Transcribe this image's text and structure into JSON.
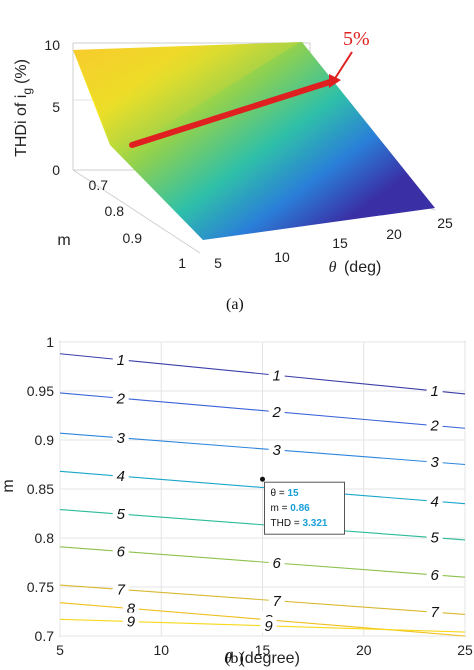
{
  "captions": [
    "(a)",
    "(b)"
  ],
  "chart_data": [
    {
      "type": "surface",
      "panel": "(a)",
      "zlabel": "THDi of i_g (%)",
      "zlabel_main": "THDi of i",
      "zlabel_sub": "g",
      "zlabel_unit": "(%)",
      "xlabel": "θ (deg)",
      "ylabel": "m",
      "xlim": [
        5,
        25
      ],
      "ylim": [
        0.7,
        1.0
      ],
      "zlim": [
        0,
        10
      ],
      "x_ticks": [
        "5",
        "10",
        "15",
        "20",
        "25"
      ],
      "y_ticks": [
        "0.7",
        "0.8",
        "0.9",
        "1"
      ],
      "z_ticks": [
        "0",
        "5",
        "10"
      ],
      "corner_values": [
        {
          "theta": 5,
          "m": 0.7,
          "thd": 9.5
        },
        {
          "theta": 25,
          "m": 0.7,
          "thd": 10.0
        },
        {
          "theta": 5,
          "m": 1.0,
          "thd": 0.2
        },
        {
          "theta": 25,
          "m": 1.0,
          "thd": 0.2
        }
      ],
      "annotation": {
        "text": "5%",
        "color": "#e02020"
      }
    },
    {
      "type": "contour",
      "panel": "(b)",
      "xlabel": "θ (degree)",
      "ylabel": "m",
      "xlim": [
        5,
        25
      ],
      "ylim": [
        0.7,
        1.0
      ],
      "x_ticks": [
        5,
        10,
        15,
        20,
        25
      ],
      "y_ticks": [
        0.7,
        0.75,
        0.8,
        0.85,
        0.9,
        0.95,
        1
      ],
      "grid": true,
      "levels": [
        {
          "value": 1,
          "label": "1",
          "color": "#3b3fa8",
          "m_left": 0.988,
          "m_right": 0.947
        },
        {
          "value": 2,
          "label": "2",
          "color": "#3a63d8",
          "m_left": 0.948,
          "m_right": 0.912
        },
        {
          "value": 3,
          "label": "3",
          "color": "#2c86de",
          "m_left": 0.907,
          "m_right": 0.875
        },
        {
          "value": 4,
          "label": "4",
          "color": "#1aa6c9",
          "m_left": 0.868,
          "m_right": 0.835
        },
        {
          "value": 5,
          "label": "5",
          "color": "#2bbb9a",
          "m_left": 0.829,
          "m_right": 0.798
        },
        {
          "value": 6,
          "label": "6",
          "color": "#8cc24a",
          "m_left": 0.791,
          "m_right": 0.76
        },
        {
          "value": 7,
          "label": "7",
          "color": "#d8b830",
          "m_left": 0.752,
          "m_right": 0.722
        },
        {
          "value": 8,
          "label": "8",
          "color": "#f0c020",
          "m_left": 0.734,
          "m_right": 0.7
        },
        {
          "value": 9,
          "label": "9",
          "color": "#f7d81a",
          "m_left": 0.717,
          "m_right": 0.704
        }
      ],
      "datatip": {
        "theta": 15,
        "m": 0.86,
        "thd": 3.321,
        "theta_label": "θ = ",
        "m_label": "m = ",
        "thd_label": "THD = ",
        "theta_text": "15",
        "m_text": "0.86",
        "thd_text": "3.321"
      }
    }
  ]
}
